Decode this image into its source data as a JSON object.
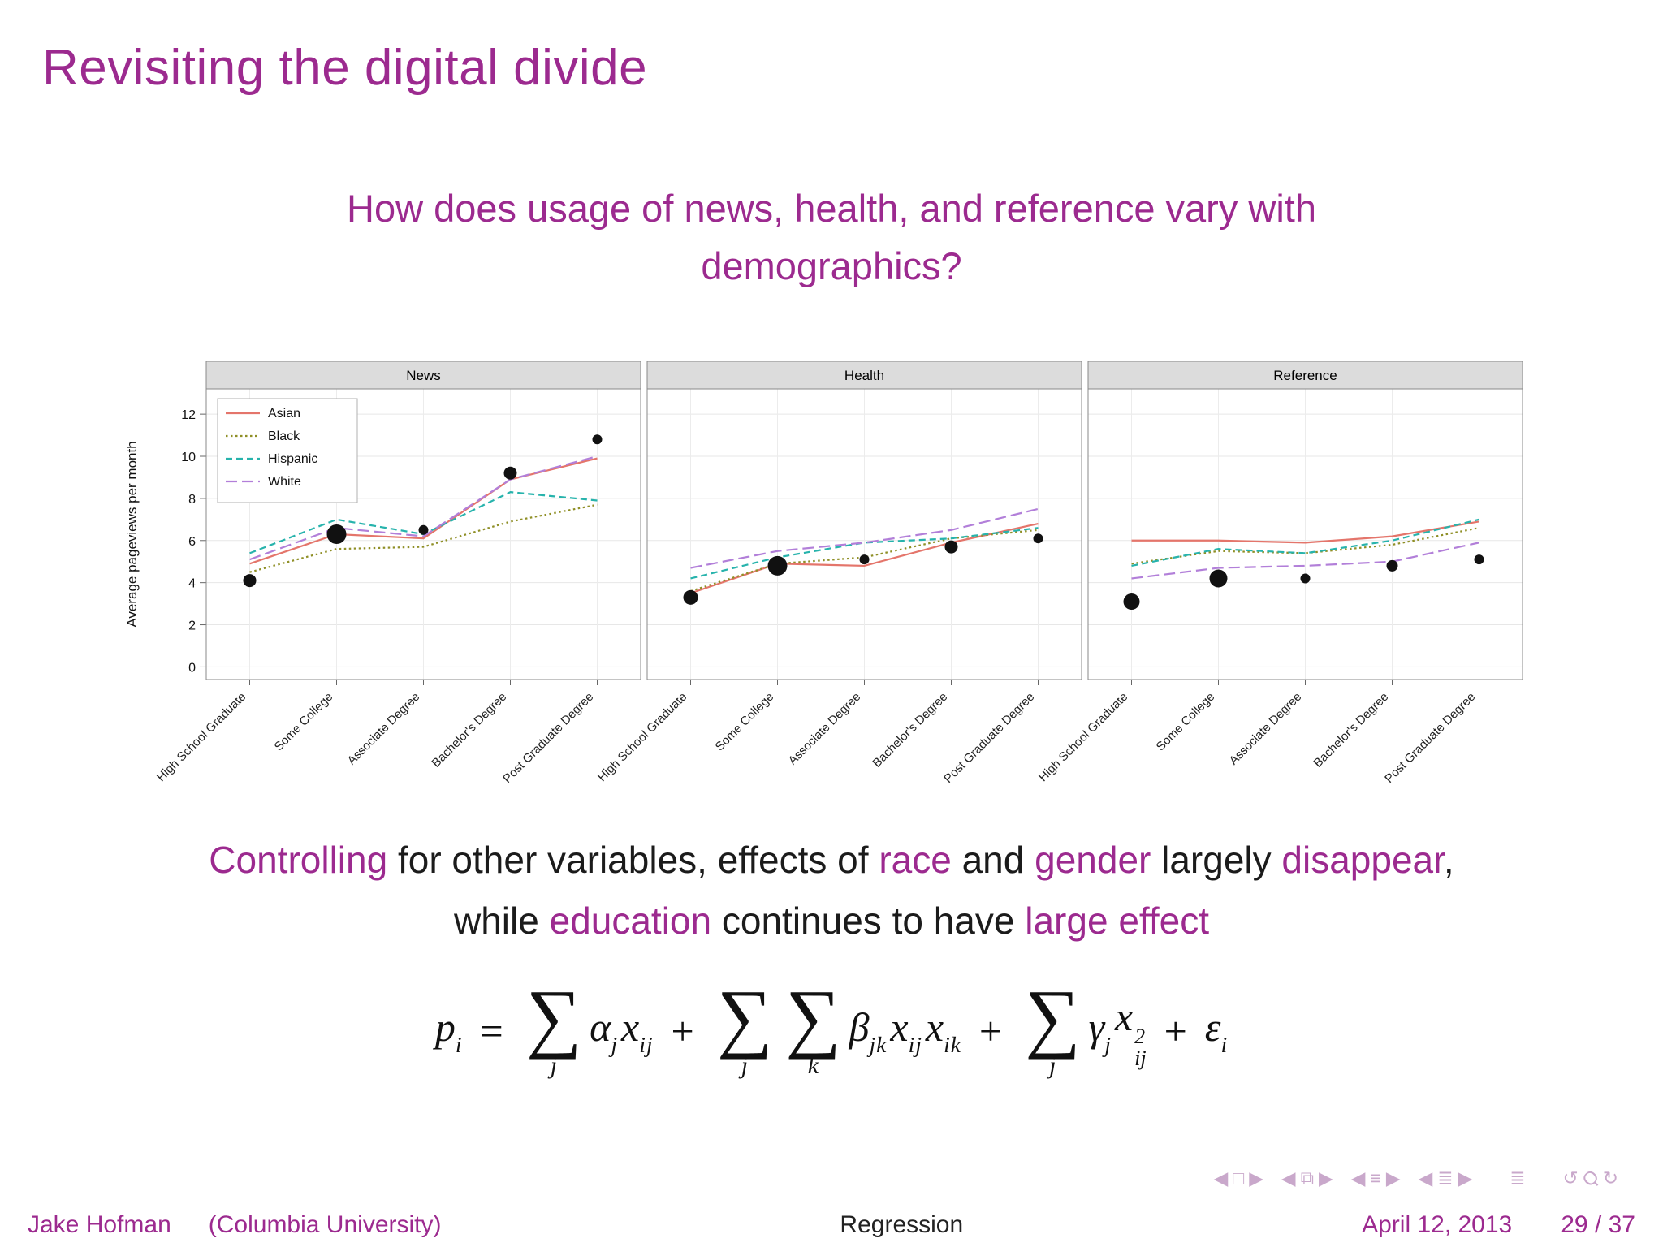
{
  "colors": {
    "accent": "#9C2A8F",
    "nav": "#C9A8CB",
    "dots": "#111111"
  },
  "slide": {
    "title": "Revisiting the digital divide",
    "question": "How does usage of news, health, and reference vary with demographics?"
  },
  "chart_data": {
    "type": "line",
    "ylabel": "Average pageviews per month",
    "ylim": [
      0,
      12
    ],
    "yticks": [
      0,
      2,
      4,
      6,
      8,
      10,
      12
    ],
    "grid": true,
    "legend_position": "top-left of first panel",
    "categories": [
      "High School Graduate",
      "Some College",
      "Associate Degree",
      "Bachelor's Degree",
      "Post Graduate Degree"
    ],
    "legend": [
      {
        "name": "Asian",
        "color": "#E4756B",
        "dash": "solid"
      },
      {
        "name": "Black",
        "color": "#8F8F26",
        "dash": "dotted"
      },
      {
        "name": "Hispanic",
        "color": "#27B3AC",
        "dash": "dashed"
      },
      {
        "name": "White",
        "color": "#B27FD9",
        "dash": "longdash"
      }
    ],
    "facets": [
      {
        "label": "News",
        "series": {
          "Asian": [
            4.9,
            6.3,
            6.1,
            8.9,
            9.9
          ],
          "Black": [
            4.5,
            5.6,
            5.7,
            6.9,
            7.7
          ],
          "Hispanic": [
            5.4,
            7.0,
            6.3,
            8.3,
            7.9
          ],
          "White": [
            5.1,
            6.6,
            6.2,
            8.9,
            10.0
          ]
        },
        "dots": [
          4.1,
          6.3,
          6.5,
          9.2,
          10.8
        ],
        "dot_r": [
          8,
          12,
          6,
          8,
          6
        ]
      },
      {
        "label": "Health",
        "series": {
          "Asian": [
            3.5,
            4.9,
            4.8,
            5.9,
            6.8
          ],
          "Black": [
            3.6,
            4.9,
            5.2,
            6.1,
            6.5
          ],
          "Hispanic": [
            4.2,
            5.2,
            5.9,
            6.1,
            6.6
          ],
          "White": [
            4.7,
            5.5,
            5.9,
            6.5,
            7.5
          ]
        },
        "dots": [
          3.3,
          4.8,
          5.1,
          5.7,
          6.1
        ],
        "dot_r": [
          9,
          12,
          6,
          8,
          6
        ]
      },
      {
        "label": "Reference",
        "series": {
          "Asian": [
            6.0,
            6.0,
            5.9,
            6.2,
            6.9
          ],
          "Black": [
            4.9,
            5.5,
            5.4,
            5.8,
            6.6
          ],
          "Hispanic": [
            4.8,
            5.6,
            5.4,
            6.0,
            7.0
          ],
          "White": [
            4.2,
            4.7,
            4.8,
            5.0,
            5.9
          ]
        },
        "dots": [
          3.1,
          4.2,
          4.2,
          4.8,
          5.1
        ],
        "dot_r": [
          10,
          11,
          6,
          7,
          6
        ]
      }
    ]
  },
  "conclusion": {
    "segments": [
      {
        "text": "Controlling",
        "em": true
      },
      {
        "text": " for other variables, effects of ",
        "em": false
      },
      {
        "text": "race",
        "em": true
      },
      {
        "text": " and ",
        "em": false
      },
      {
        "text": "gender",
        "em": true
      },
      {
        "text": " largely ",
        "em": false
      },
      {
        "text": "disappear",
        "em": true
      },
      {
        "text": ", while ",
        "em": false
      },
      {
        "text": "education",
        "em": true
      },
      {
        "text": " continues to have ",
        "em": false
      },
      {
        "text": "large effect",
        "em": true
      }
    ]
  },
  "formula": {
    "tokens": [
      {
        "t": "var",
        "base": "p",
        "sub": "i"
      },
      {
        "t": "op",
        "text": "="
      },
      {
        "t": "sum",
        "under": "j"
      },
      {
        "t": "var",
        "base": "α",
        "sub": "j"
      },
      {
        "t": "var",
        "base": "x",
        "sub": "ij"
      },
      {
        "t": "op",
        "text": "+"
      },
      {
        "t": "sum",
        "under": "j"
      },
      {
        "t": "sum",
        "under": "k"
      },
      {
        "t": "var",
        "base": "β",
        "sub": "jk"
      },
      {
        "t": "var",
        "base": "x",
        "sub": "ij"
      },
      {
        "t": "var",
        "base": "x",
        "sub": "ik"
      },
      {
        "t": "op",
        "text": "+"
      },
      {
        "t": "sum",
        "under": "j"
      },
      {
        "t": "var",
        "base": "γ",
        "sub": "j"
      },
      {
        "t": "var",
        "base": "x",
        "sub": "ij",
        "sup": "2"
      },
      {
        "t": "op",
        "text": "+"
      },
      {
        "t": "var",
        "base": "ε",
        "sub": "i"
      }
    ]
  },
  "nav": {
    "items": [
      {
        "name": "prev-slide-icon",
        "glyph": "◀"
      },
      {
        "name": "frame-icon",
        "glyph": "□"
      },
      {
        "name": "next-slide-icon",
        "glyph": "▶"
      },
      {
        "name": "spacer"
      },
      {
        "name": "prev-frame-icon",
        "glyph": "◀"
      },
      {
        "name": "frames-icon",
        "glyph": "⧉"
      },
      {
        "name": "next-frame-icon",
        "glyph": "▶"
      },
      {
        "name": "spacer"
      },
      {
        "name": "prev-subsection-icon",
        "glyph": "◀"
      },
      {
        "name": "subsection-list-icon",
        "glyph": "≡"
      },
      {
        "name": "next-subsection-icon",
        "glyph": "▶"
      },
      {
        "name": "spacer"
      },
      {
        "name": "prev-section-icon",
        "glyph": "◀"
      },
      {
        "name": "section-list-icon",
        "glyph": "≣"
      },
      {
        "name": "next-section-icon",
        "glyph": "▶"
      },
      {
        "name": "spacer-wide"
      },
      {
        "name": "presentation-icon",
        "glyph": "≣"
      },
      {
        "name": "spacer-wide"
      },
      {
        "name": "back-icon",
        "glyph": "↺"
      },
      {
        "name": "search-icon",
        "glyph": "Ϙ",
        "rot": true
      },
      {
        "name": "forward-icon",
        "glyph": "↻"
      }
    ]
  },
  "footer": {
    "author": "Jake Hofman",
    "affiliation": "(Columbia University)",
    "center": "Regression",
    "date": "April 12, 2013",
    "page": "29 / 37"
  }
}
